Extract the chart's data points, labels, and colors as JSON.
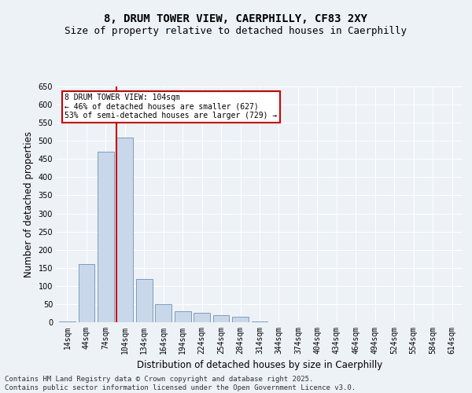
{
  "title": "8, DRUM TOWER VIEW, CAERPHILLY, CF83 2XY",
  "subtitle": "Size of property relative to detached houses in Caerphilly",
  "xlabel": "Distribution of detached houses by size in Caerphilly",
  "ylabel": "Number of detached properties",
  "categories": [
    "14sqm",
    "44sqm",
    "74sqm",
    "104sqm",
    "134sqm",
    "164sqm",
    "194sqm",
    "224sqm",
    "254sqm",
    "284sqm",
    "314sqm",
    "344sqm",
    "374sqm",
    "404sqm",
    "434sqm",
    "464sqm",
    "494sqm",
    "524sqm",
    "554sqm",
    "584sqm",
    "614sqm"
  ],
  "values": [
    2,
    160,
    470,
    510,
    120,
    50,
    30,
    25,
    20,
    15,
    2,
    0,
    0,
    0,
    1,
    0,
    0,
    0,
    0,
    0,
    1
  ],
  "bar_color": "#c8d8ea",
  "bar_edge_color": "#7090b0",
  "highlight_index": 3,
  "highlight_color": "#cc0000",
  "ylim": [
    0,
    650
  ],
  "yticks": [
    0,
    50,
    100,
    150,
    200,
    250,
    300,
    350,
    400,
    450,
    500,
    550,
    600,
    650
  ],
  "annotation_text": "8 DRUM TOWER VIEW: 104sqm\n← 46% of detached houses are smaller (627)\n53% of semi-detached houses are larger (729) →",
  "annotation_box_color": "#ffffff",
  "annotation_box_edge": "#cc0000",
  "footer_line1": "Contains HM Land Registry data © Crown copyright and database right 2025.",
  "footer_line2": "Contains public sector information licensed under the Open Government Licence v3.0.",
  "bg_color": "#edf2f7",
  "grid_color": "#ffffff",
  "title_fontsize": 10,
  "subtitle_fontsize": 9,
  "tick_fontsize": 7,
  "label_fontsize": 8.5,
  "footer_fontsize": 6.5
}
